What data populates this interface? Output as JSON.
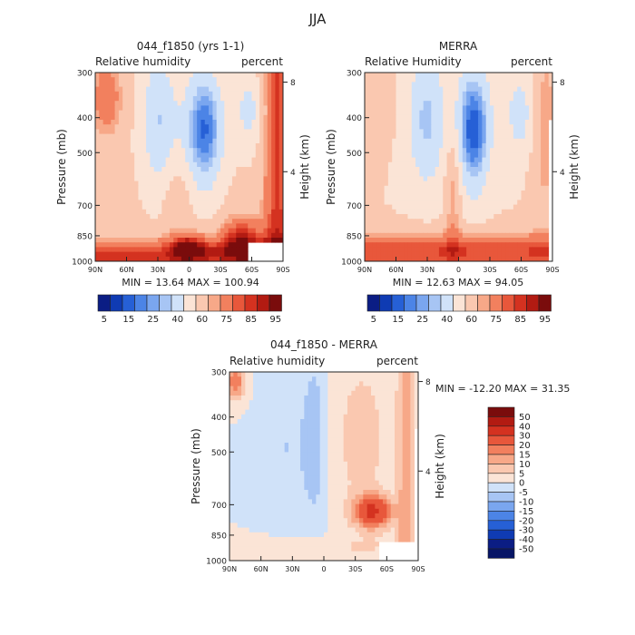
{
  "suptitle": "JJA",
  "chart_data": [
    {
      "type": "heatmap",
      "title": "044_f1850 (yrs 1-1)",
      "left_label": "Relative humidity",
      "right_label": "percent",
      "ylabel": "Pressure (mb)",
      "y2label": "Height (km)",
      "x_ticks": [
        "90N",
        "60N",
        "30N",
        "0",
        "30S",
        "60S",
        "90S"
      ],
      "y_ticks": [
        300,
        400,
        500,
        700,
        850,
        1000
      ],
      "y2_ticks": [
        8,
        4
      ],
      "xlim": [
        90,
        -90
      ],
      "ylim": [
        1000,
        300
      ],
      "stats": "MIN =   13.64   MAX =  100.94",
      "colorbar": {
        "labels": [
          "5",
          "15",
          "25",
          "40",
          "60",
          "75",
          "85",
          "95"
        ],
        "colors": [
          "#0b1d84",
          "#0f3bb3",
          "#2660d6",
          "#4c84e6",
          "#7aa6ef",
          "#a7c5f4",
          "#d0e2f9",
          "#fbe4d6",
          "#fac8b0",
          "#f7a888",
          "#f2805e",
          "#e8573b",
          "#d43220",
          "#b21b12",
          "#7a0c0c"
        ]
      }
    },
    {
      "type": "heatmap",
      "title": "MERRA",
      "left_label": "Relative Humidity",
      "right_label": "percent",
      "ylabel": "Pressure (mb)",
      "y2label": "Height (km)",
      "x_ticks": [
        "90N",
        "60N",
        "30N",
        "0",
        "30S",
        "60S",
        "90S"
      ],
      "y_ticks": [
        300,
        400,
        500,
        700,
        850,
        1000
      ],
      "y2_ticks": [
        8,
        4
      ],
      "xlim": [
        90,
        -90
      ],
      "ylim": [
        1000,
        300
      ],
      "stats": "MIN =   12.63   MAX =   94.05",
      "colorbar": {
        "labels": [
          "5",
          "15",
          "25",
          "40",
          "60",
          "75",
          "85",
          "95"
        ],
        "colors": [
          "#0b1d84",
          "#0f3bb3",
          "#2660d6",
          "#4c84e6",
          "#7aa6ef",
          "#a7c5f4",
          "#d0e2f9",
          "#fbe4d6",
          "#fac8b0",
          "#f7a888",
          "#f2805e",
          "#e8573b",
          "#d43220",
          "#b21b12",
          "#7a0c0c"
        ]
      }
    },
    {
      "type": "heatmap",
      "title": "044_f1850 - MERRA",
      "left_label": "Relative humidity",
      "right_label": "percent",
      "ylabel": "Pressure (mb)",
      "y2label": "Height (km)",
      "x_ticks": [
        "90N",
        "60N",
        "30N",
        "0",
        "30S",
        "60S",
        "90S"
      ],
      "y_ticks": [
        300,
        400,
        500,
        700,
        850,
        1000
      ],
      "y2_ticks": [
        8,
        4
      ],
      "xlim": [
        90,
        -90
      ],
      "ylim": [
        1000,
        300
      ],
      "stats": "MIN =  -12.20   MAX =   31.35",
      "colorbar": {
        "labels": [
          "50",
          "40",
          "30",
          "20",
          "15",
          "10",
          "5",
          "0",
          "-5",
          "-10",
          "-15",
          "-20",
          "-30",
          "-40",
          "-50"
        ],
        "colors": [
          "#7a0c0c",
          "#b21b12",
          "#d43220",
          "#e8573b",
          "#f2805e",
          "#f7a888",
          "#fac8b0",
          "#fbe4d6",
          "#d0e2f9",
          "#a7c5f4",
          "#7aa6ef",
          "#4c84e6",
          "#2660d6",
          "#0f3bb3",
          "#0b1d84",
          "#071566"
        ]
      }
    }
  ]
}
